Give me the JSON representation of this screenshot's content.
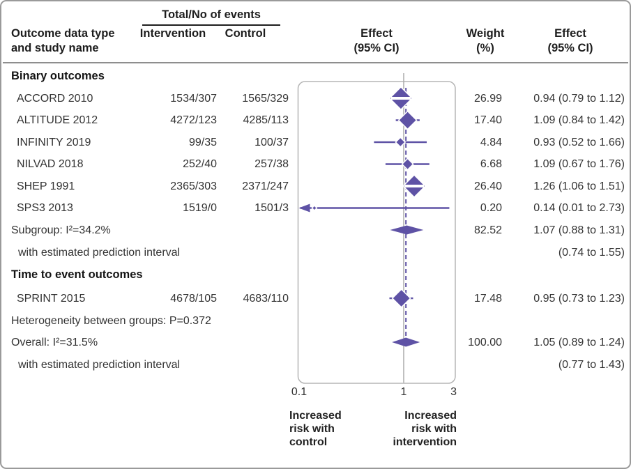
{
  "chart_data": {
    "type": "forest",
    "columns": {
      "study": "Outcome data type\nand study name",
      "events_group": "Total/No of events",
      "intervention": "Intervention",
      "control": "Control",
      "effect_plot": "Effect\n(95% CI)",
      "weight": "Weight\n(%)",
      "effect": "Effect\n(95% CI)"
    },
    "x_axis": {
      "scale": "log",
      "ticks": [
        0.1,
        1,
        3
      ],
      "tick_labels": [
        "0.1",
        "1",
        "3"
      ],
      "null_value": 1,
      "overall_value": 1.05,
      "left_direction_label": "Increased\nrisk with\ncontrol",
      "right_direction_label": "Increased\nrisk with\nintervention"
    },
    "colors": {
      "marker": "#5E52A5",
      "null_line": "#ABABAB",
      "panel_border": "#B5B5B5",
      "text": "#333333"
    },
    "rows": [
      {
        "kind": "section",
        "label": "Binary outcomes"
      },
      {
        "kind": "study",
        "label": "ACCORD 2010",
        "intervention": "1534/307",
        "control": "1565/329",
        "est": 0.94,
        "lo": 0.79,
        "hi": 1.12,
        "weight": 26.99,
        "weight_text": "26.99",
        "effect_text": "0.94 (0.79 to 1.12)"
      },
      {
        "kind": "study",
        "label": "ALTITUDE 2012",
        "intervention": "4272/123",
        "control": "4285/113",
        "est": 1.09,
        "lo": 0.84,
        "hi": 1.42,
        "weight": 17.4,
        "weight_text": "17.40",
        "effect_text": "1.09 (0.84 to 1.42)"
      },
      {
        "kind": "study",
        "label": "INFINITY 2019",
        "intervention": "99/35",
        "control": "100/37",
        "est": 0.93,
        "lo": 0.52,
        "hi": 1.66,
        "weight": 4.84,
        "weight_text": "4.84",
        "effect_text": "0.93 (0.52 to 1.66)"
      },
      {
        "kind": "study",
        "label": "NILVAD 2018",
        "intervention": "252/40",
        "control": "257/38",
        "est": 1.09,
        "lo": 0.67,
        "hi": 1.76,
        "weight": 6.68,
        "weight_text": "6.68",
        "effect_text": "1.09 (0.67 to 1.76)"
      },
      {
        "kind": "study",
        "label": "SHEP 1991",
        "intervention": "2365/303",
        "control": "2371/247",
        "est": 1.26,
        "lo": 1.06,
        "hi": 1.51,
        "weight": 26.4,
        "weight_text": "26.40",
        "effect_text": "1.26 (1.06 to 1.51)"
      },
      {
        "kind": "study",
        "label": "SPS3 2013",
        "intervention": "1519/0",
        "control": "1501/3",
        "est": 0.14,
        "lo": 0.01,
        "hi": 2.73,
        "weight": 0.2,
        "weight_text": "0.20",
        "effect_text": "0.14 (0.01 to 2.73)"
      },
      {
        "kind": "summary",
        "label": "Subgroup: I²=34.2%",
        "est": 1.07,
        "lo": 0.88,
        "hi": 1.31,
        "weight_text": "82.52",
        "effect_text": "1.07 (0.88 to 1.31)"
      },
      {
        "kind": "note",
        "label": "with estimated prediction interval",
        "effect_text": "(0.74 to 1.55)"
      },
      {
        "kind": "section",
        "label": "Time to event outcomes"
      },
      {
        "kind": "study",
        "label": "SPRINT 2015",
        "intervention": "4678/105",
        "control": "4683/110",
        "est": 0.95,
        "lo": 0.73,
        "hi": 1.23,
        "weight": 17.48,
        "weight_text": "17.48",
        "effect_text": "0.95 (0.73 to 1.23)"
      },
      {
        "kind": "text",
        "label": "Heterogeneity between groups: P=0.372"
      },
      {
        "kind": "summary",
        "label": "Overall: I²=31.5%",
        "est": 1.05,
        "lo": 0.89,
        "hi": 1.24,
        "weight_text": "100.00",
        "effect_text": "1.05 (0.89 to 1.24)"
      },
      {
        "kind": "note",
        "label": "with estimated prediction interval",
        "effect_text": "(0.77 to 1.43)"
      }
    ]
  }
}
